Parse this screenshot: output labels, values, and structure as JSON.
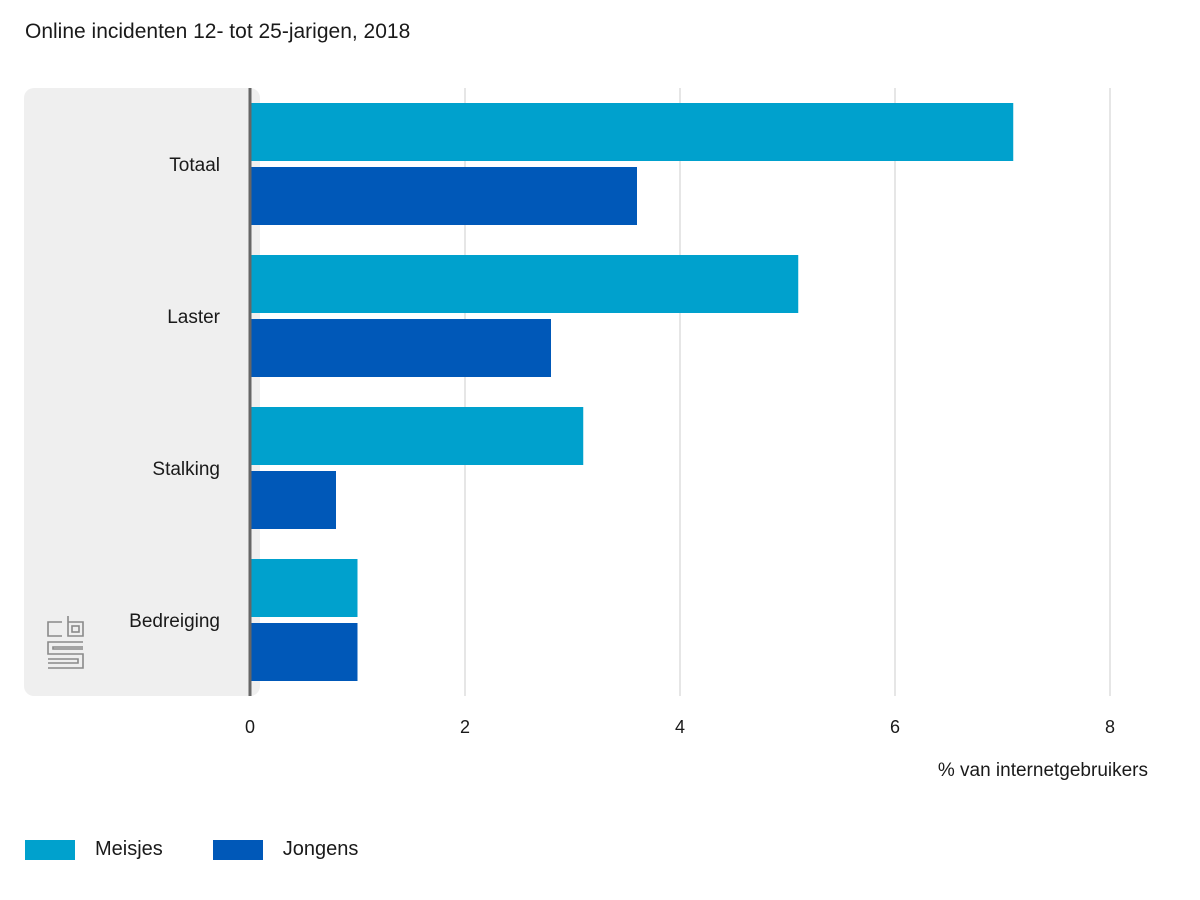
{
  "title": "Online incidenten 12- tot 25-jarigen, 2018",
  "colors": {
    "meisjes": "#00A1CD",
    "jongens": "#0058B8",
    "panel": "#EFEFEF",
    "grid": "#CCCCCC",
    "axis": "#666666"
  },
  "logo": {
    "icon": "cbs-logo-icon",
    "text": "cbs"
  },
  "chart_data": {
    "type": "bar",
    "orientation": "horizontal",
    "title": "Online incidenten 12- tot 25-jarigen, 2018",
    "categories": [
      "Totaal",
      "Laster",
      "Stalking",
      "Bedreiging"
    ],
    "series": [
      {
        "name": "Meisjes",
        "values": [
          7.1,
          5.1,
          3.1,
          1.0
        ]
      },
      {
        "name": "Jongens",
        "values": [
          3.6,
          2.8,
          0.8,
          1.0
        ]
      }
    ],
    "xlabel": "% van internetgebruikers",
    "ylabel": "",
    "xlim": [
      0,
      8
    ],
    "ticks": [
      "0",
      "2",
      "4",
      "6",
      "8"
    ],
    "grid": true,
    "legend": "bottom-left"
  }
}
